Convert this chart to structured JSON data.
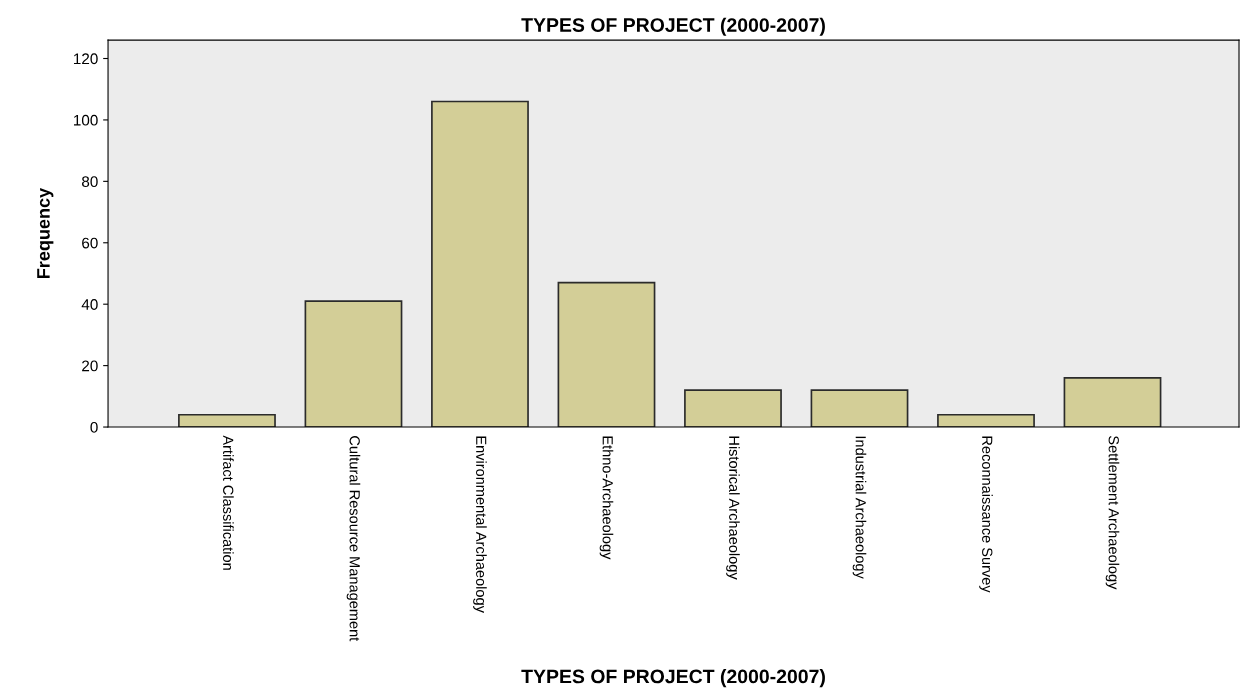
{
  "chart_data": {
    "type": "bar",
    "title": "TYPES OF PROJECT (2000-2007)",
    "xlabel": "TYPES OF PROJECT (2000-2007)",
    "ylabel": "Frequency",
    "categories": [
      "Artifact Classification",
      "Cultural Resource Management",
      "Environmental Archaeology",
      "Ethno-Archaeology",
      "Historical Archaeology",
      "Industrial Archaeology",
      "Reconnaissance Survey",
      "Settlement Archaeology"
    ],
    "values": [
      4,
      41,
      106,
      47,
      12,
      12,
      4,
      16
    ],
    "color": "#d3ce97",
    "ylim": [
      0,
      126
    ],
    "yticks": [
      0,
      20,
      40,
      60,
      80,
      100,
      120
    ],
    "grid": false
  }
}
